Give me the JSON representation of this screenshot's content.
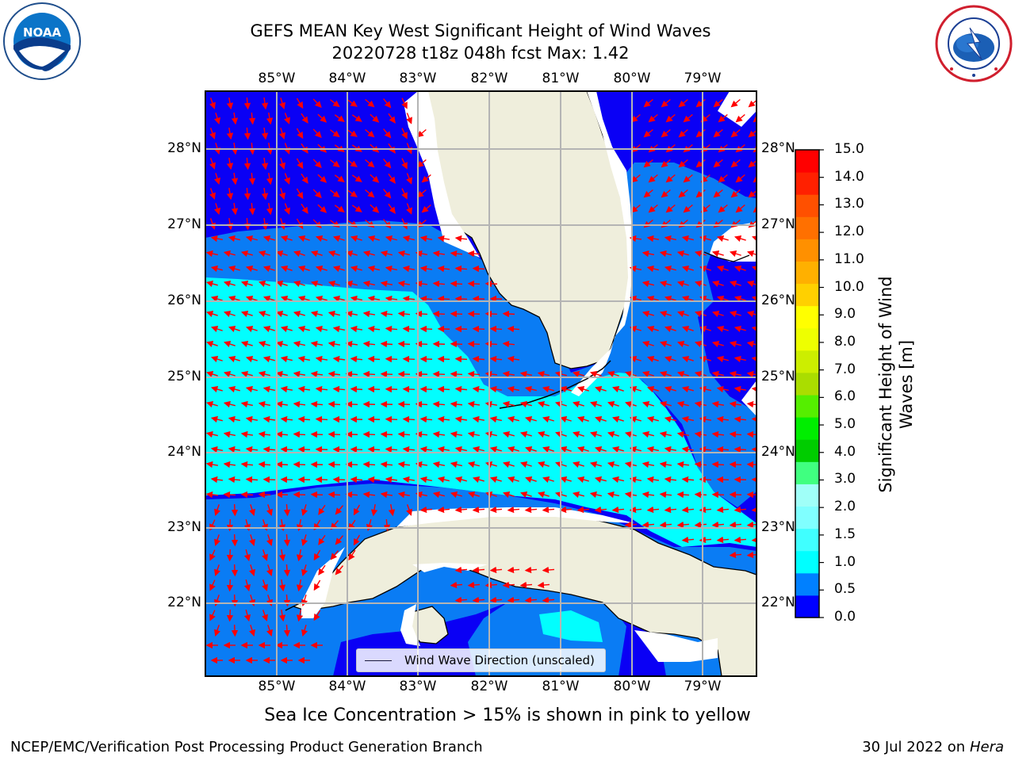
{
  "title": {
    "line1": "GEFS MEAN Key West Significant Height of Wind Waves",
    "line2": "20220728 t18z 048h fcst   Max: 1.42"
  },
  "logos": {
    "left": {
      "text": "NOAA",
      "ring_text": "NATIONAL OCEANIC AND ATMOSPHERIC ADMINISTRATION · U.S. DEPARTMENT OF COMMERCE"
    },
    "right": {
      "ring_text": "NATIONAL WEATHER SERVICE"
    }
  },
  "map": {
    "lon_labels": [
      "85°W",
      "84°W",
      "83°W",
      "82°W",
      "81°W",
      "80°W",
      "79°W"
    ],
    "lat_labels": [
      "28°N",
      "27°N",
      "26°N",
      "25°N",
      "24°N",
      "23°N",
      "22°N"
    ],
    "colors": {
      "land": "#efeedc",
      "deep_blue": "#0a00f5",
      "mid_blue": "#0a7cf4",
      "cyan": "#02fefe",
      "arrow": "#ff0000",
      "grid": "#b4b4b4",
      "coast": "#000000"
    },
    "legend_label": "Wind Wave Direction (unscaled)"
  },
  "colorbar": {
    "title": "Significant Height of Wind Waves [m]",
    "tick_labels": [
      "15.0",
      "14.0",
      "13.0",
      "12.0",
      "11.0",
      "10.0",
      "9.0",
      "8.0",
      "7.0",
      "6.0",
      "5.0",
      "4.0",
      "3.0",
      "2.0",
      "1.5",
      "1.0",
      "0.5",
      "0.0"
    ],
    "bin_colors": [
      "#0000ff",
      "#0080ff",
      "#00ffff",
      "#40ffff",
      "#80ffff",
      "#a0fff8",
      "#40ff80",
      "#00cc00",
      "#00ee00",
      "#55ee00",
      "#aadd00",
      "#ccee00",
      "#eeff00",
      "#ffff00",
      "#ffd000",
      "#ffb000",
      "#ff9000",
      "#ff7000",
      "#ff5000",
      "#ff2000",
      "#ff0000"
    ]
  },
  "note": "Sea Ice Concentration > 15% is shown in pink to yellow",
  "footer": {
    "left": "NCEP/EMC/Verification Post Processing Product Generation Branch",
    "date": "30 Jul 2022 on ",
    "machine": "Hera"
  }
}
